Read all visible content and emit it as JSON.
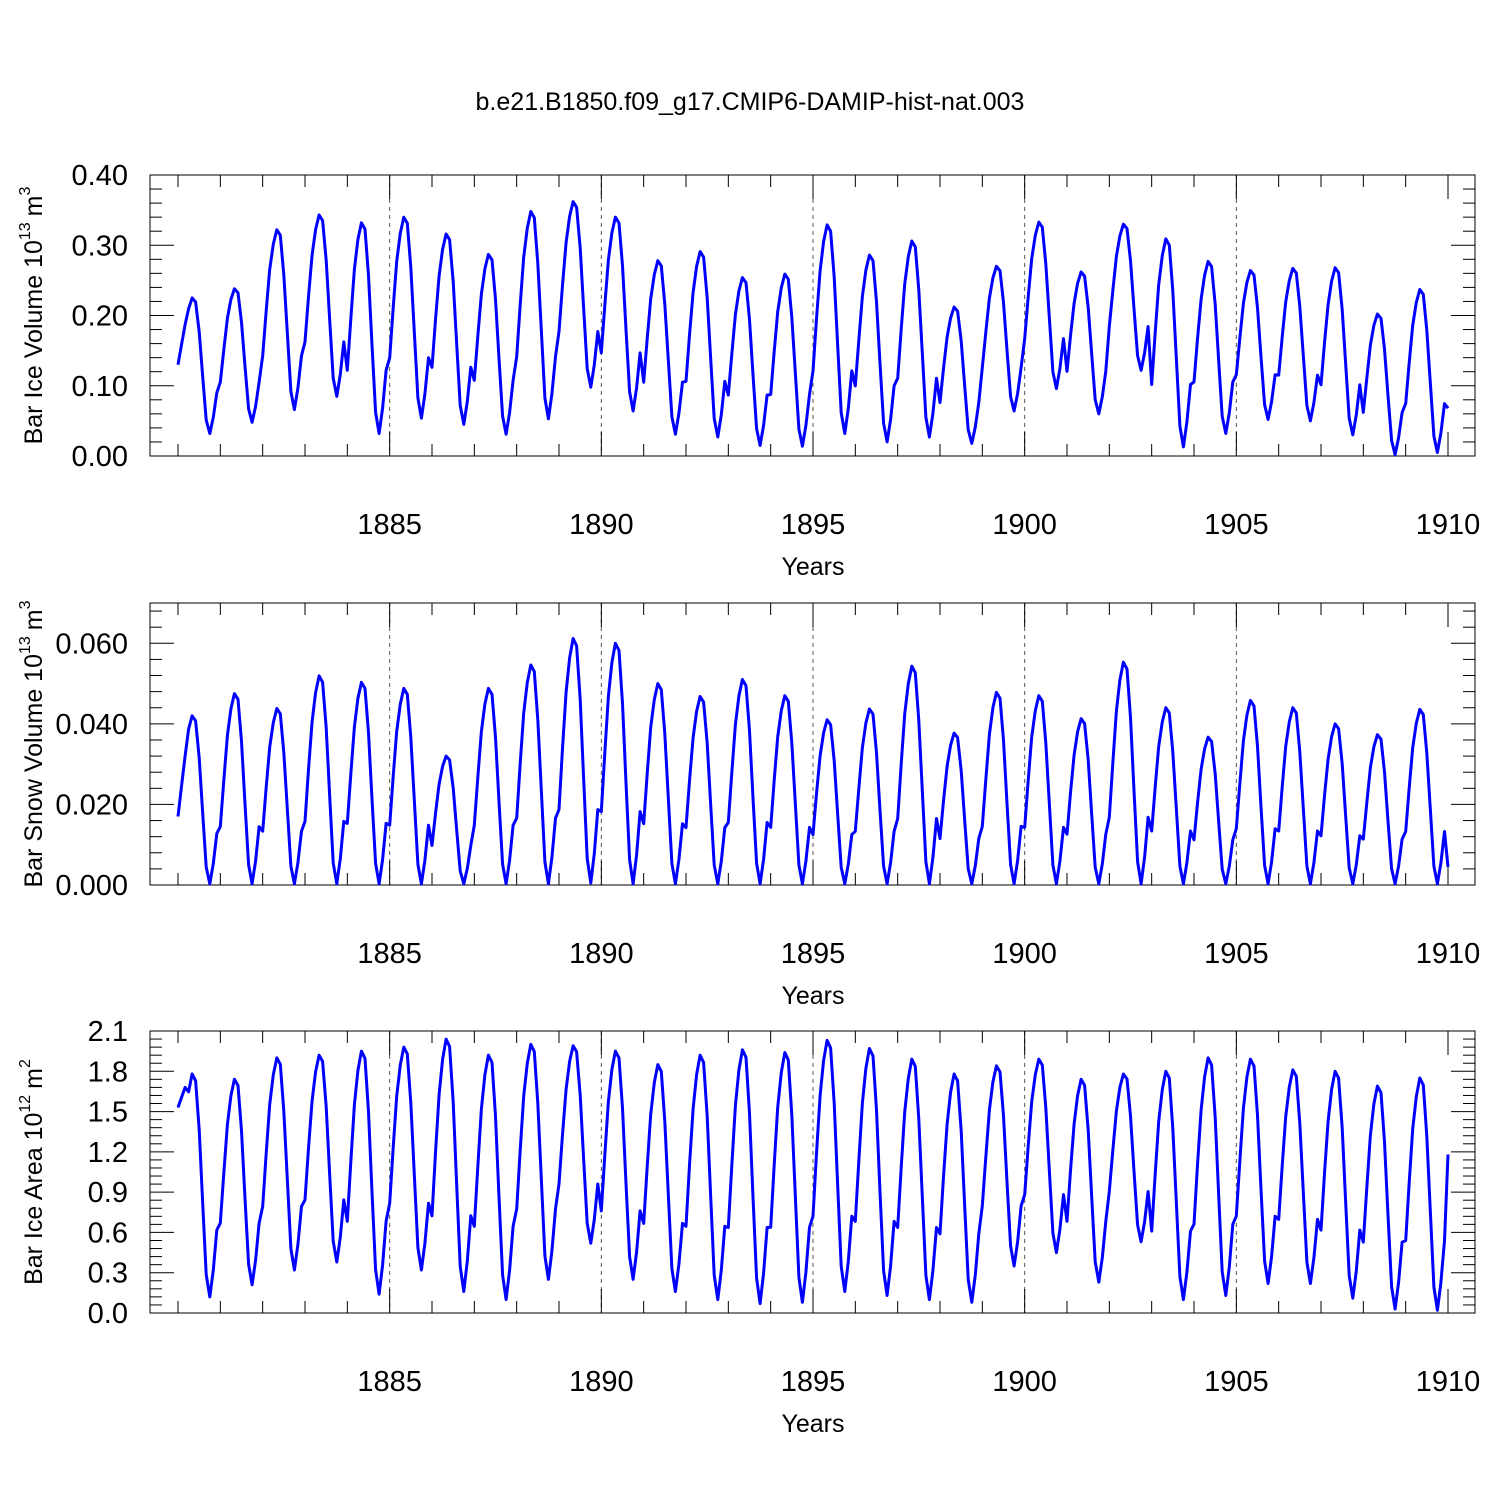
{
  "title": "b.e21.B1850.f09_g17.CMIP6-DAMIP-hist-nat.003",
  "chart_data": [
    {
      "type": "line",
      "ylabel": "Bar Ice Volume 10",
      "ylabel_exp": "13",
      "ylabel_unit": "m",
      "ylabel_unit_exp": "3",
      "xlabel": "Years",
      "xlim": [
        1880,
        1910
      ],
      "ylim": [
        0,
        0.4
      ],
      "yticks": [
        0.0,
        0.1,
        0.2,
        0.3,
        0.4
      ],
      "ytick_labels": [
        "0.00",
        "0.10",
        "0.20",
        "0.30",
        "0.40"
      ],
      "xticks": [
        1885,
        1890,
        1895,
        1900,
        1905,
        1910
      ],
      "xtick_labels": [
        "1885",
        "1890",
        "1895",
        "1900",
        "1905",
        "1910"
      ],
      "series": [
        {
          "name": "Bar Ice Volume",
          "color": "#0000ff",
          "cycles": [
            [
              0.13,
              0.225,
              0.032
            ],
            [
              0.238,
              0.048
            ],
            [
              0.322,
              0.066
            ],
            [
              0.343,
              0.085
            ],
            [
              0.332,
              0.032
            ],
            [
              0.34,
              0.054
            ],
            [
              0.316,
              0.045
            ],
            [
              0.287,
              0.031
            ],
            [
              0.348,
              0.053
            ],
            [
              0.362,
              0.098
            ],
            [
              0.34,
              0.064
            ],
            [
              0.278,
              0.031
            ],
            [
              0.291,
              0.027
            ],
            [
              0.254,
              0.015
            ],
            [
              0.259,
              0.014
            ],
            [
              0.329,
              0.032
            ],
            [
              0.286,
              0.02
            ],
            [
              0.306,
              0.027
            ],
            [
              0.212,
              0.018
            ],
            [
              0.27,
              0.064
            ],
            [
              0.333,
              0.096
            ],
            [
              0.262,
              0.06
            ],
            [
              0.33,
              0.122
            ],
            [
              0.309,
              0.013
            ],
            [
              0.277,
              0.032
            ],
            [
              0.264,
              0.052
            ],
            [
              0.267,
              0.05
            ],
            [
              0.268,
              0.03
            ],
            [
              0.202,
              0.002
            ],
            [
              0.237,
              0.005,
              0.068
            ]
          ]
        }
      ]
    },
    {
      "type": "line",
      "ylabel": "Bar Snow Volume 10",
      "ylabel_exp": "13",
      "ylabel_unit": "m",
      "ylabel_unit_exp": "3",
      "xlabel": "Years",
      "xlim": [
        1880,
        1910
      ],
      "ylim": [
        0,
        0.07
      ],
      "yticks": [
        0.0,
        0.02,
        0.04,
        0.06
      ],
      "ytick_labels": [
        "0.000",
        "0.020",
        "0.040",
        "0.060"
      ],
      "xticks": [
        1885,
        1890,
        1895,
        1900,
        1905,
        1910
      ],
      "xtick_labels": [
        "1885",
        "1890",
        "1895",
        "1900",
        "1905",
        "1910"
      ],
      "series": [
        {
          "name": "Bar Snow Volume",
          "color": "#0000ff",
          "cycles": [
            [
              0.017,
              0.042,
              0.0003
            ],
            [
              0.0475,
              0.0003
            ],
            [
              0.0438,
              0.0003
            ],
            [
              0.0519,
              0.0003
            ],
            [
              0.0503,
              0.0003
            ],
            [
              0.0488,
              0.0003
            ],
            [
              0.032,
              0.0003
            ],
            [
              0.0488,
              0.0003
            ],
            [
              0.0546,
              0.0003
            ],
            [
              0.0612,
              0.0005
            ],
            [
              0.06,
              0.0003
            ],
            [
              0.05,
              0.0003
            ],
            [
              0.0468,
              0.0003
            ],
            [
              0.051,
              0.0003
            ],
            [
              0.047,
              0.0003
            ],
            [
              0.041,
              0.0003
            ],
            [
              0.0437,
              0.0003
            ],
            [
              0.0543,
              0.0003
            ],
            [
              0.0377,
              0.0003
            ],
            [
              0.0478,
              0.0003
            ],
            [
              0.047,
              0.0003
            ],
            [
              0.0413,
              0.0003
            ],
            [
              0.0553,
              0.0003
            ],
            [
              0.044,
              0.0003
            ],
            [
              0.0367,
              0.0003
            ],
            [
              0.0458,
              0.0003
            ],
            [
              0.044,
              0.0003
            ],
            [
              0.04,
              0.0003
            ],
            [
              0.0373,
              0.0003
            ],
            [
              0.0436,
              0.0003,
              0.0045
            ]
          ]
        }
      ]
    },
    {
      "type": "line",
      "ylabel": "Bar Ice Area 10",
      "ylabel_exp": "12",
      "ylabel_unit": "m",
      "ylabel_unit_exp": "2",
      "xlabel": "Years",
      "xlim": [
        1880,
        1910
      ],
      "ylim": [
        0,
        2.1
      ],
      "yticks": [
        0.0,
        0.3,
        0.6,
        0.9,
        1.2,
        1.5,
        1.8,
        2.1
      ],
      "ytick_labels": [
        "0.0",
        "0.3",
        "0.6",
        "0.9",
        "1.2",
        "1.5",
        "1.8",
        "2.1"
      ],
      "xticks": [
        1885,
        1890,
        1895,
        1900,
        1905,
        1910
      ],
      "xtick_labels": [
        "1885",
        "1890",
        "1895",
        "1900",
        "1905",
        "1910"
      ],
      "series": [
        {
          "name": "Bar Ice Area",
          "color": "#0000ff",
          "cycles": [
            [
              1.53,
              1.78,
              0.12
            ],
            [
              1.74,
              0.21
            ],
            [
              1.9,
              0.32
            ],
            [
              1.92,
              0.38
            ],
            [
              1.95,
              0.14
            ],
            [
              1.98,
              0.32
            ],
            [
              2.04,
              0.16
            ],
            [
              1.92,
              0.1
            ],
            [
              2.0,
              0.25
            ],
            [
              1.99,
              0.52
            ],
            [
              1.95,
              0.25
            ],
            [
              1.85,
              0.16
            ],
            [
              1.92,
              0.1
            ],
            [
              1.96,
              0.07
            ],
            [
              1.94,
              0.08
            ],
            [
              2.03,
              0.16
            ],
            [
              1.97,
              0.13
            ],
            [
              1.89,
              0.1
            ],
            [
              1.78,
              0.08
            ],
            [
              1.84,
              0.35
            ],
            [
              1.89,
              0.45
            ],
            [
              1.74,
              0.23
            ],
            [
              1.78,
              0.53
            ],
            [
              1.8,
              0.1
            ],
            [
              1.9,
              0.13
            ],
            [
              1.89,
              0.22
            ],
            [
              1.81,
              0.22
            ],
            [
              1.8,
              0.11
            ],
            [
              1.69,
              0.03
            ],
            [
              1.75,
              0.02,
              1.18
            ]
          ]
        }
      ]
    }
  ]
}
